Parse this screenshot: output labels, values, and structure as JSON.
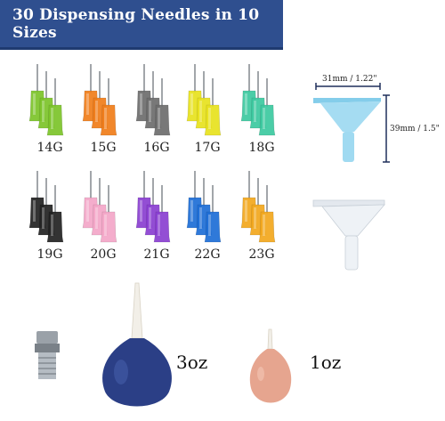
{
  "banner": {
    "title": "30 Dispensing Needles in 10 Sizes"
  },
  "needles": [
    {
      "gauge": "14G",
      "color": "#7cc42a"
    },
    {
      "gauge": "15G",
      "color": "#f07d1a"
    },
    {
      "gauge": "16G",
      "color": "#6d6d6d"
    },
    {
      "gauge": "17G",
      "color": "#e8e21e"
    },
    {
      "gauge": "18G",
      "color": "#3cc9a0"
    },
    {
      "gauge": "19G",
      "color": "#222222"
    },
    {
      "gauge": "20G",
      "color": "#f4a7c8"
    },
    {
      "gauge": "21G",
      "color": "#8a3fd1"
    },
    {
      "gauge": "22G",
      "color": "#1e6ed6"
    },
    {
      "gauge": "23G",
      "color": "#f2a81e"
    }
  ],
  "funnel": {
    "width_label": "31mm / 1.22\"",
    "height_label": "39mm / 1.5\"",
    "blue_color": "#8fd3ef",
    "clear_color": "#e8edf2"
  },
  "bulbs": {
    "large_label": "3oz",
    "small_label": "1oz",
    "large_color": "#2b3f86",
    "small_color": "#e6a58f"
  },
  "colors": {
    "banner": "#2f4f8f"
  }
}
